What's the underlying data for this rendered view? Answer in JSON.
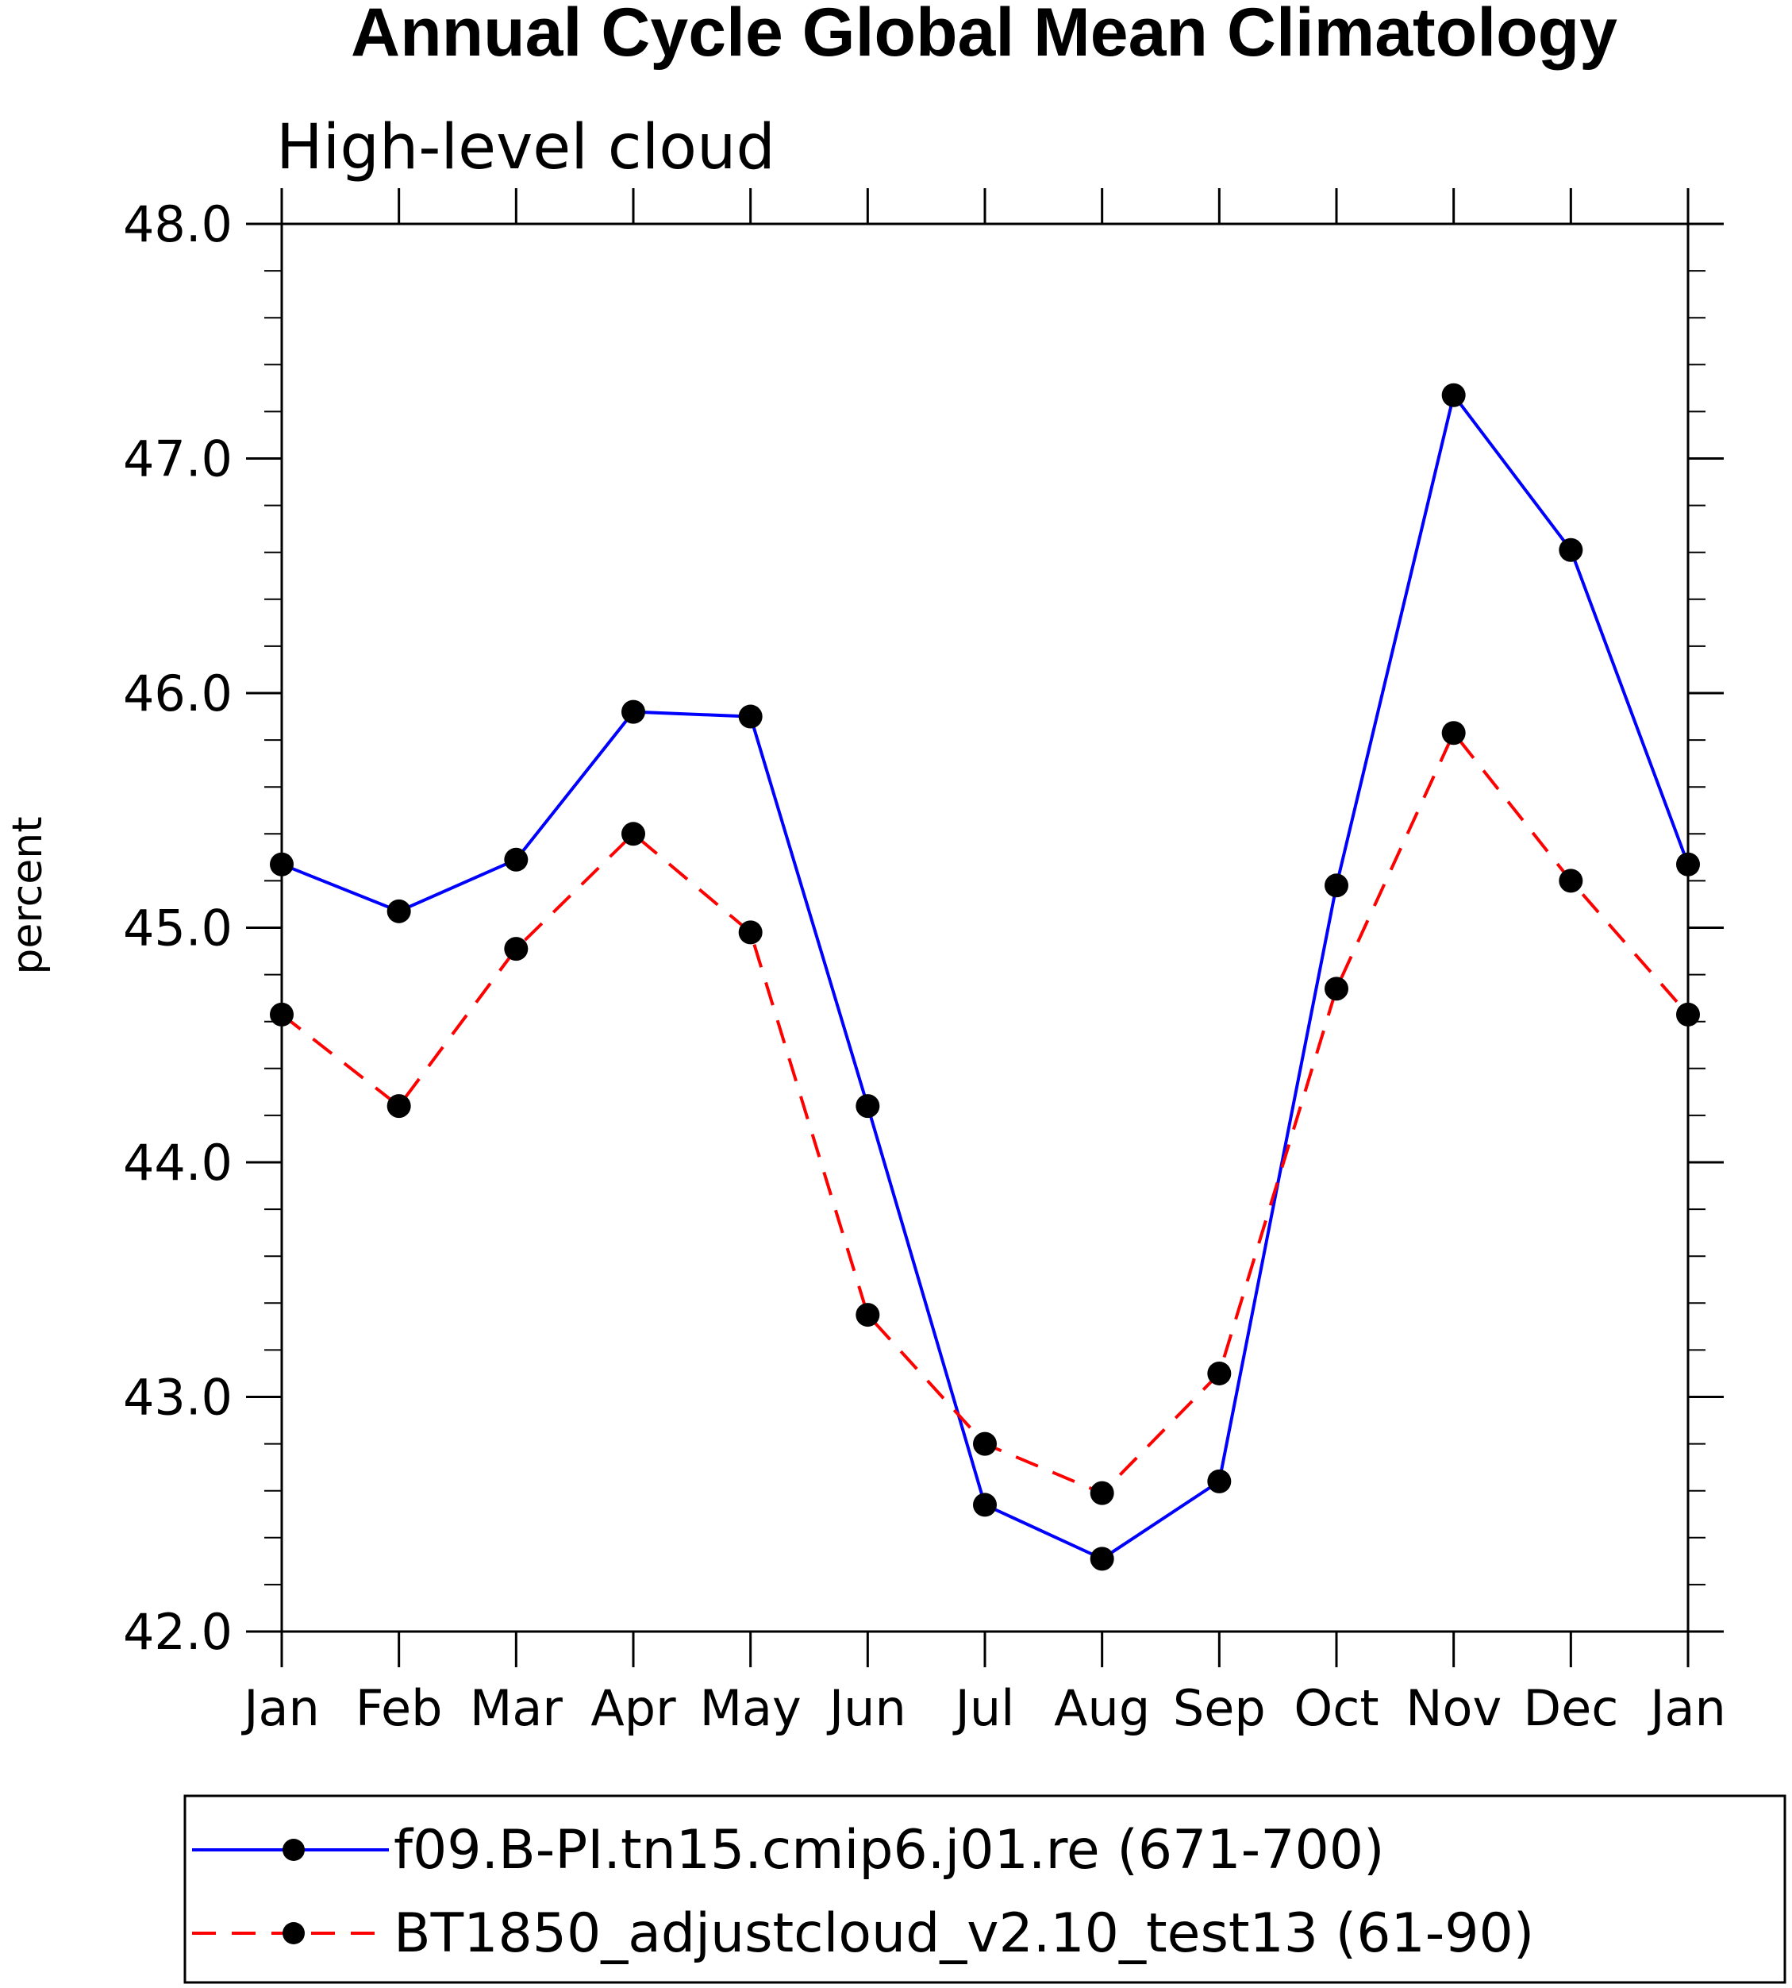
{
  "chart_data": {
    "type": "line",
    "title": "Annual Cycle Global Mean Climatology",
    "subtitle": "High-level cloud",
    "xlabel": "",
    "ylabel": "percent",
    "categories": [
      "Jan",
      "Feb",
      "Mar",
      "Apr",
      "May",
      "Jun",
      "Jul",
      "Aug",
      "Sep",
      "Oct",
      "Nov",
      "Dec",
      "Jan"
    ],
    "ylim": [
      42.0,
      48.0
    ],
    "yticks": [
      "42.0",
      "43.0",
      "44.0",
      "45.0",
      "46.0",
      "47.0",
      "48.0"
    ],
    "grid": false,
    "legend_position": "bottom",
    "series": [
      {
        "name": "f09.B-PI.tn15.cmip6.j01.re (671-700)",
        "color": "#0000ff",
        "style": "solid",
        "values": [
          45.27,
          45.07,
          45.29,
          45.92,
          45.9,
          44.24,
          42.54,
          42.31,
          42.64,
          45.18,
          47.27,
          46.61,
          45.27
        ]
      },
      {
        "name": "BT1850_adjustcloud_v2.10_test13 (61-90)",
        "color": "#ff0000",
        "style": "dashed",
        "values": [
          44.63,
          44.24,
          44.91,
          45.4,
          44.98,
          43.35,
          42.8,
          42.59,
          43.1,
          44.74,
          45.83,
          45.2,
          44.63
        ]
      }
    ]
  }
}
